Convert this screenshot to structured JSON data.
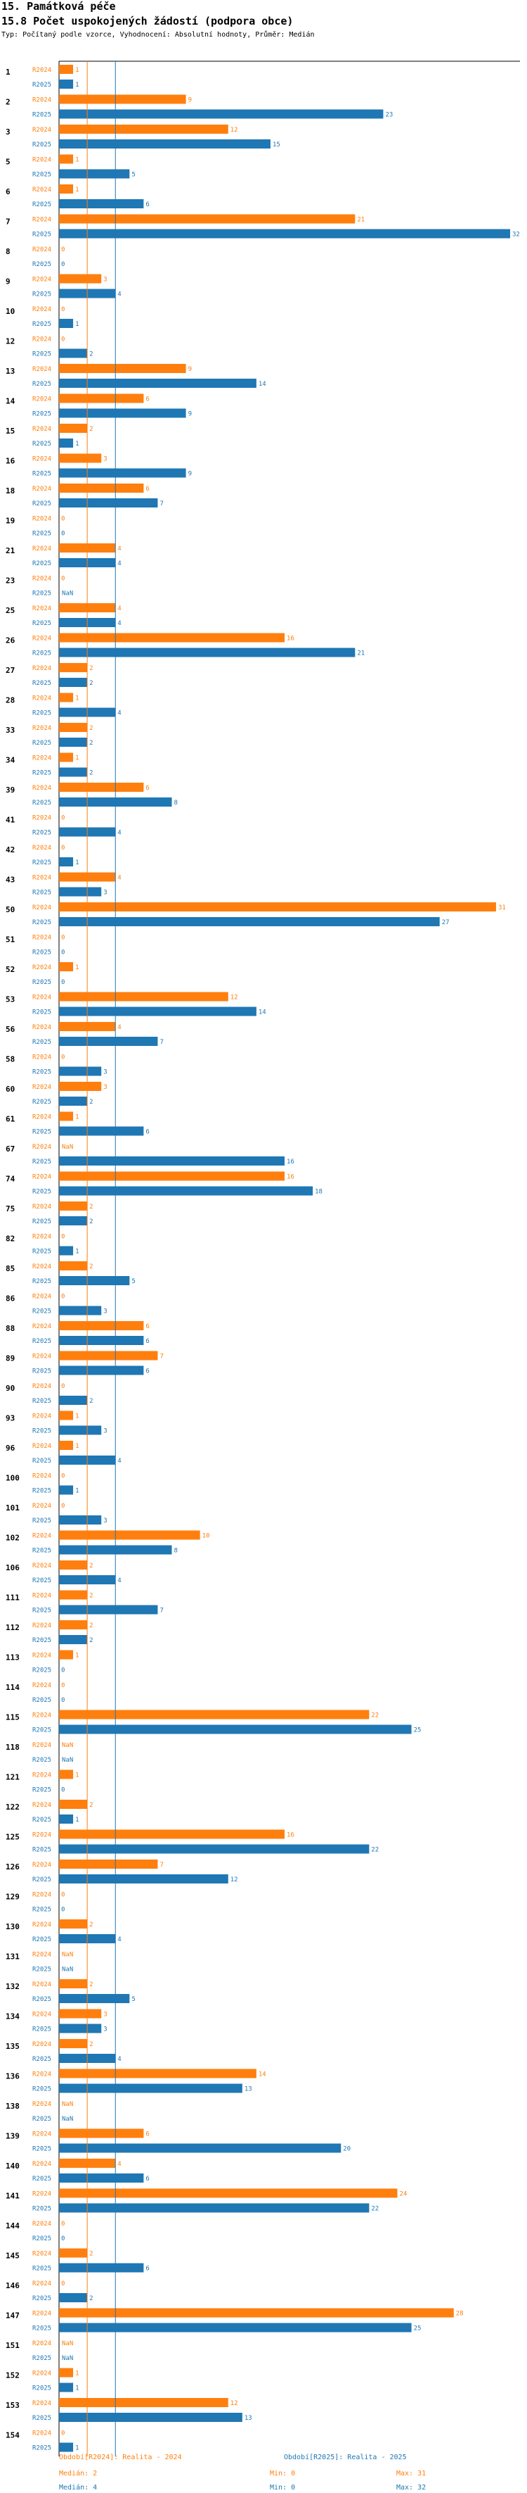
{
  "header": {
    "section": "15. Památková péče",
    "title": "15.8 Počet uspokojených žádostí (podpora obce)",
    "subtitle": "Typ: Počítaný podle vzorce, Vyhodnocení: Absolutní hodnoty, Průměr: Medián"
  },
  "colors": {
    "r2024": "#ff7f0e",
    "r2025": "#1f77b4"
  },
  "chart_data": {
    "type": "bar",
    "orientation": "horizontal",
    "xlim": [
      0,
      32
    ],
    "series_labels": [
      "R2024",
      "R2025"
    ],
    "categories": [
      "1",
      "2",
      "3",
      "5",
      "6",
      "7",
      "8",
      "9",
      "10",
      "12",
      "13",
      "14",
      "15",
      "16",
      "18",
      "19",
      "21",
      "23",
      "25",
      "26",
      "27",
      "28",
      "33",
      "34",
      "39",
      "41",
      "42",
      "43",
      "50",
      "51",
      "52",
      "53",
      "56",
      "58",
      "60",
      "61",
      "67",
      "74",
      "75",
      "82",
      "85",
      "86",
      "88",
      "89",
      "90",
      "93",
      "96",
      "100",
      "101",
      "102",
      "106",
      "111",
      "112",
      "113",
      "114",
      "115",
      "118",
      "121",
      "122",
      "125",
      "126",
      "129",
      "130",
      "131",
      "132",
      "134",
      "135",
      "136",
      "138",
      "139",
      "140",
      "141",
      "144",
      "145",
      "146",
      "147",
      "151",
      "152",
      "153",
      "154"
    ],
    "series": [
      {
        "name": "R2024",
        "values": [
          1,
          9,
          12,
          1,
          1,
          21,
          0,
          3,
          0,
          0,
          9,
          6,
          2,
          3,
          6,
          0,
          4,
          0,
          4,
          16,
          2,
          1,
          2,
          1,
          6,
          0,
          0,
          4,
          31,
          0,
          1,
          12,
          4,
          0,
          3,
          1,
          null,
          16,
          2,
          0,
          2,
          0,
          6,
          7,
          0,
          1,
          1,
          0,
          0,
          10,
          2,
          2,
          2,
          1,
          0,
          22,
          null,
          1,
          2,
          16,
          7,
          0,
          2,
          null,
          2,
          3,
          2,
          14,
          null,
          6,
          4,
          24,
          0,
          2,
          0,
          28,
          null,
          1,
          12,
          0
        ]
      },
      {
        "name": "R2025",
        "values": [
          1,
          23,
          15,
          5,
          6,
          32,
          0,
          4,
          1,
          2,
          14,
          9,
          1,
          9,
          7,
          0,
          4,
          null,
          4,
          21,
          2,
          4,
          2,
          2,
          8,
          4,
          1,
          3,
          27,
          0,
          0,
          14,
          7,
          3,
          2,
          6,
          16,
          18,
          2,
          1,
          5,
          3,
          6,
          6,
          2,
          3,
          4,
          1,
          3,
          8,
          4,
          7,
          2,
          0,
          0,
          25,
          null,
          0,
          1,
          22,
          12,
          0,
          4,
          null,
          5,
          3,
          4,
          13,
          null,
          20,
          6,
          22,
          0,
          6,
          2,
          25,
          null,
          1,
          13,
          1
        ]
      }
    ]
  },
  "na_label": "NaN",
  "legend": {
    "r2024_title": "Období[R2024]: Realita - 2024",
    "r2025_title": "Období[R2025]: Realita - 2025",
    "r2024_median": "Medián: 2",
    "r2024_min": "Min: 0",
    "r2024_max": "Max: 31",
    "r2025_median": "Medián: 4",
    "r2025_min": "Min: 0",
    "r2025_max": "Max: 32"
  }
}
